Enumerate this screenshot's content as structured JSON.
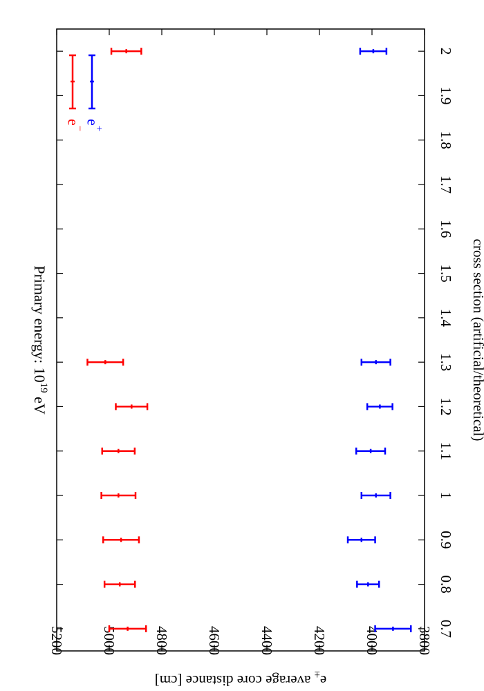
{
  "chart_data": {
    "type": "scatter",
    "title": "Primary energy: 10",
    "title_superscript": "19",
    "title_suffix": " eV",
    "xlabel": "cross section (artificial/theoretical)",
    "ylabel": "e",
    "ylabel_pm": "±",
    "ylabel_suffix": " average core distance [cm]",
    "xlim": [
      0.65,
      2.05
    ],
    "ylim": [
      3800,
      5200
    ],
    "x_ticks": [
      "0.7",
      "0.8",
      "0.9",
      "1",
      "1.1",
      "1.2",
      "1.3",
      "1.4",
      "1.5",
      "1.6",
      "1.7",
      "1.8",
      "1.9",
      "2"
    ],
    "x_tick_values": [
      0.7,
      0.8,
      0.9,
      1.0,
      1.1,
      1.2,
      1.3,
      1.4,
      1.5,
      1.6,
      1.7,
      1.8,
      1.9,
      2.0
    ],
    "y_ticks": [
      "3800",
      "4000",
      "4200",
      "4400",
      "4600",
      "4800",
      "5000",
      "5200"
    ],
    "y_tick_values": [
      3800,
      4000,
      4200,
      4400,
      4600,
      4800,
      5000,
      5200
    ],
    "grid": false,
    "legend_placement": "top-right",
    "series": [
      {
        "name": "e",
        "sign": "−",
        "color": "#ff0000",
        "x": [
          0.7,
          0.8,
          0.9,
          1.0,
          1.1,
          1.2,
          1.3,
          2.0
        ],
        "y": [
          4930,
          4960,
          4955,
          4965,
          4965,
          4915,
          5015,
          4935
        ],
        "yerr": [
          70,
          58,
          68,
          65,
          62,
          60,
          68,
          57
        ]
      },
      {
        "name": "e",
        "sign": "+",
        "color": "#0000ff",
        "x": [
          0.7,
          0.8,
          0.9,
          1.0,
          1.1,
          1.2,
          1.3,
          2.0
        ],
        "y": [
          3920,
          4015,
          4040,
          3985,
          4005,
          3970,
          3985,
          3995
        ],
        "yerr": [
          68,
          42,
          52,
          55,
          55,
          48,
          55,
          50
        ]
      }
    ]
  }
}
